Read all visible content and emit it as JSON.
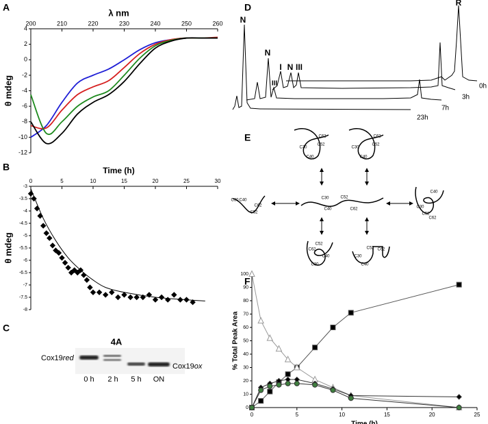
{
  "panels": [
    "A",
    "B",
    "C",
    "D",
    "E",
    "F"
  ],
  "chart_data": [
    {
      "type": "line",
      "x_label": "λ nm",
      "y_label": "θ mdeg",
      "xaxis_position": "top",
      "smooth": true,
      "x": [
        200,
        205,
        210,
        215,
        220,
        225,
        230,
        235,
        240,
        245,
        250,
        255,
        260
      ],
      "xlim": [
        200,
        260
      ],
      "xticks": [
        200,
        210,
        220,
        230,
        240,
        250,
        260
      ],
      "ylim": [
        -12,
        4
      ],
      "yticks": [
        -12,
        -10,
        -8,
        -6,
        -4,
        -2,
        0,
        2,
        4
      ],
      "series": [
        {
          "color": "#1f1fd6",
          "values": [
            -10,
            -8.5,
            -5.5,
            -3,
            -2,
            -1.2,
            0,
            1.3,
            2.2,
            2.6,
            2.8,
            2.8,
            2.8
          ]
        },
        {
          "color": "#d62020",
          "values": [
            -8.5,
            -8.8,
            -6.5,
            -4.5,
            -3.5,
            -2.7,
            -1,
            0.8,
            2,
            2.6,
            2.8,
            2.8,
            2.9
          ]
        },
        {
          "color": "#1e8a1e",
          "values": [
            -4.5,
            -9.5,
            -8,
            -6,
            -4.8,
            -4,
            -2,
            0.2,
            1.8,
            2.5,
            2.8,
            2.8,
            2.8
          ]
        },
        {
          "color": "#000000",
          "values": [
            -8,
            -10.8,
            -9.5,
            -7,
            -5.5,
            -4.5,
            -2.8,
            -0.5,
            1.5,
            2.4,
            2.8,
            2.8,
            2.8
          ]
        }
      ]
    },
    {
      "type": "scatter",
      "x_label": "Time (h)",
      "y_label": "θ mdeg",
      "xaxis_position": "top",
      "xlim": [
        0,
        30
      ],
      "xticks": [
        0,
        5,
        10,
        15,
        20,
        25,
        30
      ],
      "ylim": [
        -8,
        -3
      ],
      "yticks": [
        -8,
        -7.5,
        -7,
        -6.5,
        -6,
        -5.5,
        -5,
        -4.5,
        -4,
        -3.5,
        -3
      ],
      "series": [
        {
          "color": "#000000",
          "marker": "diamond",
          "line": false,
          "x": [
            0,
            0.5,
            1,
            1.5,
            2,
            2.5,
            3,
            3.5,
            4,
            4.5,
            5,
            5.5,
            6,
            6.5,
            7,
            7.5,
            8,
            8.5,
            9,
            9.5,
            10,
            11,
            12,
            13,
            14,
            15,
            16,
            17,
            18,
            19,
            20,
            21,
            22,
            23,
            24,
            25,
            26
          ],
          "values": [
            -3.3,
            -3.5,
            -3.9,
            -4.2,
            -4.6,
            -4.9,
            -5.1,
            -5.4,
            -5.6,
            -5.7,
            -5.9,
            -6.1,
            -6.3,
            -6.5,
            -6.4,
            -6.5,
            -6.4,
            -6.6,
            -6.8,
            -7.1,
            -7.3,
            -7.3,
            -7.4,
            -7.3,
            -7.5,
            -7.4,
            -7.5,
            -7.5,
            -7.5,
            -7.4,
            -7.6,
            -7.5,
            -7.6,
            -7.4,
            -7.6,
            -7.6,
            -7.7
          ]
        },
        {
          "color": "#000000",
          "marker": "none",
          "line": true,
          "smooth": true,
          "x": [
            0,
            2,
            4,
            6,
            8,
            10,
            12,
            15,
            20,
            25,
            28
          ],
          "values": [
            -3.1,
            -4.3,
            -5.2,
            -5.9,
            -6.4,
            -6.8,
            -7.1,
            -7.3,
            -7.5,
            -7.6,
            -7.65
          ]
        }
      ]
    },
    {
      "type": "scatter",
      "x_label": "Time (h)",
      "y_label": "% Total Peak Area",
      "xaxis_position": "bottom",
      "x": [
        0,
        1,
        2,
        3,
        4,
        5,
        7,
        9,
        11,
        23
      ],
      "xlim": [
        0,
        25
      ],
      "xticks": [
        0,
        5,
        10,
        15,
        20,
        25
      ],
      "ylim": [
        0,
        100
      ],
      "yticks": [
        0,
        10,
        20,
        30,
        40,
        50,
        60,
        70,
        80,
        90,
        100
      ],
      "series": [
        {
          "color": "#555555",
          "marker": "square",
          "marker_fill": "#000000",
          "line": true,
          "values": [
            0,
            5,
            12,
            19,
            25,
            30,
            45,
            60,
            71,
            92
          ]
        },
        {
          "color": "#999999",
          "marker": "triangle",
          "marker_fill": "#ffffff",
          "line": true,
          "values": [
            100,
            65,
            52,
            44,
            36,
            30,
            21,
            15,
            9,
            0
          ]
        },
        {
          "color": "#333333",
          "marker": "diamond",
          "marker_fill": "#000000",
          "line": true,
          "values": [
            0,
            15,
            18,
            20,
            21,
            21,
            18,
            14,
            9,
            8
          ]
        },
        {
          "color": "#333333",
          "marker": "circle",
          "marker_fill": "#3f7f3f",
          "line": true,
          "values": [
            0,
            13,
            16,
            17,
            18,
            18,
            17,
            13,
            7,
            0
          ]
        }
      ]
    }
  ],
  "panel_c": {
    "title": "4A",
    "red_label": {
      "base": "Cox19",
      "italic": "red"
    },
    "ox_label": {
      "base": "Cox19",
      "italic": "ox"
    },
    "lanes": [
      "0 h",
      "2 h",
      "5 h",
      "ON"
    ]
  },
  "panel_d": {
    "peak_labels": [
      "N",
      "N",
      "III",
      "I",
      "N",
      "III",
      "R"
    ],
    "traces": [
      "0h",
      "3h",
      "7h",
      "23h"
    ]
  },
  "panel_e": {
    "nodes": [
      {
        "labels": [
          "C30",
          "C40",
          "C52",
          "C62"
        ]
      },
      {
        "labels": [
          "C30",
          "C40",
          "C52",
          "C62"
        ]
      },
      {
        "labels": [
          "C30",
          "C40",
          "C52",
          "C62"
        ]
      },
      {
        "labels": [
          "C30",
          "C40",
          "C52",
          "C62"
        ]
      },
      {
        "labels": [
          "C30",
          "C40",
          "C52",
          "C62"
        ]
      },
      {
        "labels": [
          "C30",
          "C40",
          "C52",
          "C62"
        ]
      },
      {
        "labels": [
          "C30",
          "C40",
          "C52",
          "C62"
        ]
      }
    ]
  }
}
